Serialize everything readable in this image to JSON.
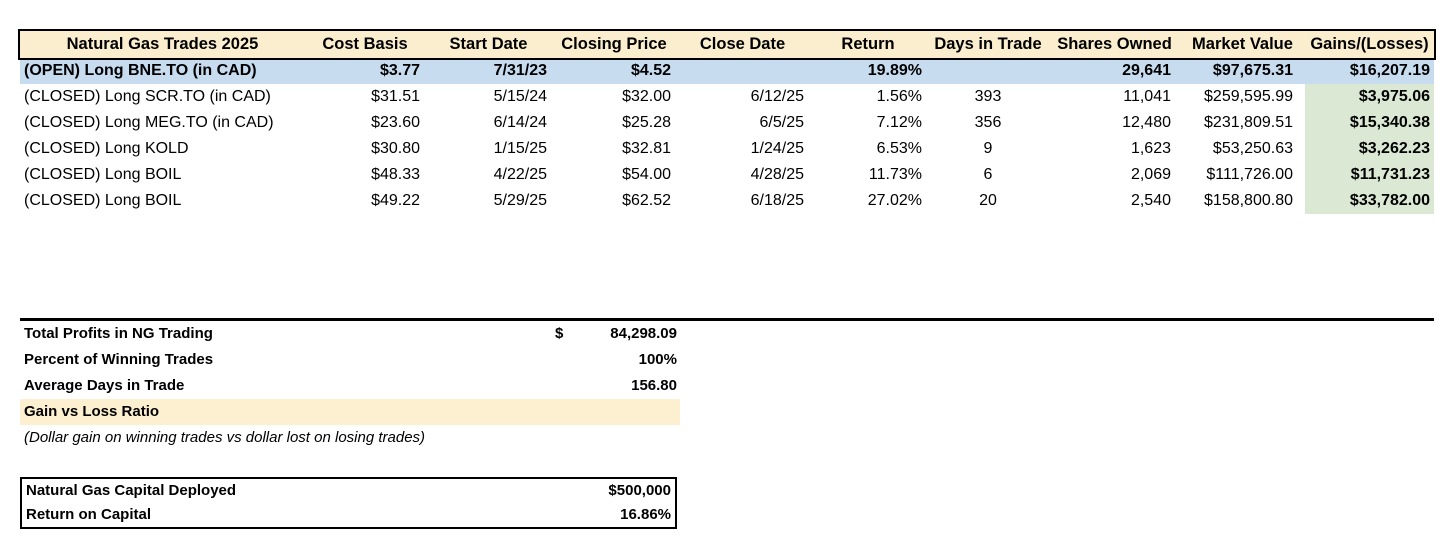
{
  "colors": {
    "header_fill": "#FBEECF",
    "open_row_fill": "#C8DCF0",
    "gains_fill": "#DBE8D3",
    "highlight_fill": "#FCF0D0",
    "line_color": "#000000"
  },
  "table": {
    "headers": [
      "Natural Gas Trades 2025",
      "Cost Basis",
      "Start Date",
      "Closing Price",
      "Close Date",
      "Return",
      "Days in Trade",
      "Shares Owned",
      "Market Value",
      "Gains/(Losses)"
    ],
    "rows": [
      {
        "label": "(OPEN) Long BNE.TO (in CAD)",
        "cost_basis": "$3.77",
        "start_date": "7/31/23",
        "closing_price": "$4.52",
        "close_date": "",
        "return": "19.89%",
        "days_in_trade": "",
        "shares_owned": "29,641",
        "market_value": "$97,675.31",
        "gains": "$16,207.19",
        "status": "open"
      },
      {
        "label": "(CLOSED) Long SCR.TO (in CAD)",
        "cost_basis": "$31.51",
        "start_date": "5/15/24",
        "closing_price": "$32.00",
        "close_date": "6/12/25",
        "return": "1.56%",
        "days_in_trade": "393",
        "shares_owned": "11,041",
        "market_value": "$259,595.99",
        "gains": "$3,975.06",
        "status": "closed"
      },
      {
        "label": "(CLOSED) Long MEG.TO (in CAD)",
        "cost_basis": "$23.60",
        "start_date": "6/14/24",
        "closing_price": "$25.28",
        "close_date": "6/5/25",
        "return": "7.12%",
        "days_in_trade": "356",
        "shares_owned": "12,480",
        "market_value": "$231,809.51",
        "gains": "$15,340.38",
        "status": "closed"
      },
      {
        "label": "(CLOSED) Long KOLD",
        "cost_basis": "$30.80",
        "start_date": "1/15/25",
        "closing_price": "$32.81",
        "close_date": "1/24/25",
        "return": "6.53%",
        "days_in_trade": "9",
        "shares_owned": "1,623",
        "market_value": "$53,250.63",
        "gains": "$3,262.23",
        "status": "closed"
      },
      {
        "label": "(CLOSED) Long BOIL",
        "cost_basis": "$48.33",
        "start_date": "4/22/25",
        "closing_price": "$54.00",
        "close_date": "4/28/25",
        "return": "11.73%",
        "days_in_trade": "6",
        "shares_owned": "2,069",
        "market_value": "$111,726.00",
        "gains": "$11,731.23",
        "status": "closed"
      },
      {
        "label": "(CLOSED) Long BOIL",
        "cost_basis": "$49.22",
        "start_date": "5/29/25",
        "closing_price": "$62.52",
        "close_date": "6/18/25",
        "return": "27.02%",
        "days_in_trade": "20",
        "shares_owned": "2,540",
        "market_value": "$158,800.80",
        "gains": "$33,782.00",
        "status": "closed"
      }
    ]
  },
  "summary": {
    "rows": [
      {
        "label": "Total Profits in NG Trading",
        "currency": "$",
        "value": "84,298.09"
      },
      {
        "label": "Percent of Winning Trades",
        "currency": "",
        "value": "100%"
      },
      {
        "label": "Average Days in Trade",
        "currency": "",
        "value": "156.80"
      },
      {
        "label": "Gain vs Loss Ratio",
        "currency": "",
        "value": ""
      }
    ],
    "note": "(Dollar gain on winning trades vs dollar lost on losing trades)"
  },
  "capital": {
    "rows": [
      {
        "label": "Natural Gas Capital Deployed",
        "value": "$500,000"
      },
      {
        "label": "Return on Capital",
        "value": "16.86%"
      }
    ]
  }
}
